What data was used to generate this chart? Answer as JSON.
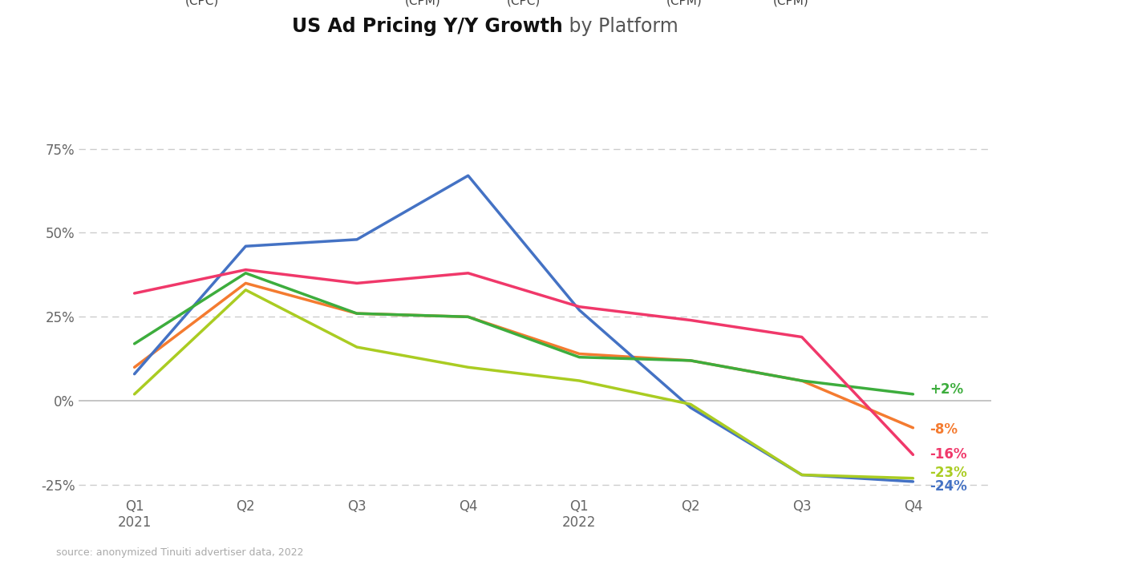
{
  "title_bold": "US Ad Pricing Y/Y Growth",
  "title_regular": " by Platform",
  "x_labels": [
    "Q1\n2021",
    "Q2",
    "Q3",
    "Q4",
    "Q1\n2022",
    "Q2",
    "Q3",
    "Q4"
  ],
  "series": {
    "Amazon Sponsored Products\n(CPC)": {
      "color": "#F47B30",
      "values": [
        10,
        35,
        26,
        25,
        14,
        12,
        6,
        -8
      ]
    },
    "Facebook\n(CPM)": {
      "color": "#4472C4",
      "values": [
        8,
        46,
        48,
        67,
        27,
        -2,
        -22,
        -24
      ]
    },
    "Google Search Ads\n(CPC)": {
      "color": "#3DAD3D",
      "values": [
        17,
        38,
        26,
        25,
        13,
        12,
        6,
        2
      ]
    },
    "Instagram\n(CPM)": {
      "color": "#F0386A",
      "values": [
        32,
        39,
        35,
        38,
        28,
        24,
        19,
        -16
      ]
    },
    "YouTube\n(CPM)": {
      "color": "#AACC22",
      "values": [
        2,
        33,
        16,
        10,
        6,
        -1,
        -22,
        -23
      ]
    }
  },
  "end_label_texts": {
    "Google Search Ads\n(CPC)": "+2%",
    "Amazon Sponsored Products\n(CPC)": "-8%",
    "Instagram\n(CPM)": "-16%",
    "YouTube\n(CPM)": "-23%",
    "Facebook\n(CPM)": "-24%"
  },
  "end_label_offsets_y": {
    "Google Search Ads\n(CPC)": 1.5,
    "Amazon Sponsored Products\n(CPC)": -0.5,
    "Instagram\n(CPM)": 0.0,
    "YouTube\n(CPM)": 1.5,
    "Facebook\n(CPM)": -1.5
  },
  "ylim": [
    -28,
    82
  ],
  "yticks": [
    -25,
    0,
    25,
    50,
    75
  ],
  "ytick_labels": [
    "-25%",
    "0%",
    "25%",
    "50%",
    "75%"
  ],
  "source_text": "source: anonymized Tinuiti advertiser data, 2022",
  "background_color": "#FFFFFF",
  "grid_color": "#CCCCCC",
  "zero_line_color": "#BBBBBB"
}
